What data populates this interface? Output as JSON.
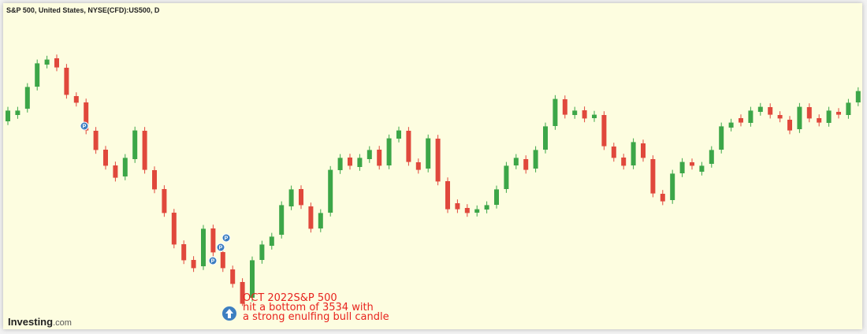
{
  "chart_data": {
    "type": "candlestick",
    "title": "S&P 500, United States, NYSE(CFD):US500, D",
    "annotation": [
      "OCT 2022S&P 500",
      "hit a bottom of 3534 with",
      "a strong enulfing bull candle"
    ],
    "events": [
      "P",
      "P",
      "P",
      "P"
    ],
    "brand": "Investing",
    "brand_suffix": ".com",
    "up_color": "#3ca648",
    "down_color": "#e0483c",
    "ylim": [
      3460,
      4485
    ],
    "open": [
      4120,
      4140,
      4160,
      4230,
      4300,
      4320,
      4290,
      4200,
      4180,
      4090,
      4030,
      3980,
      3945,
      4000,
      4090,
      3965,
      3905,
      3830,
      3730,
      3680,
      3660,
      3780,
      3705,
      3650,
      3610,
      3560,
      3680,
      3725,
      3760,
      3850,
      3905,
      3850,
      3780,
      3830,
      3965,
      4005,
      3975,
      4000,
      4030,
      3980,
      4065,
      4090,
      3990,
      3970,
      4065,
      3930,
      3860,
      3845,
      3830,
      3840,
      3855,
      3905,
      3980,
      4000,
      3970,
      4030,
      4105,
      4190,
      4140,
      4155,
      4130,
      4140,
      4040,
      4005,
      3980,
      4050,
      4000,
      3890,
      3870,
      3955,
      3990,
      3960,
      3985,
      4030,
      4100,
      4130,
      4115,
      4150,
      4165,
      4140,
      4125,
      4095,
      4165,
      4130,
      4115,
      4150,
      4140,
      4180
    ],
    "high": [
      4166,
      4166,
      4241,
      4316,
      4328,
      4332,
      4302,
      4212,
      4192,
      4102,
      4042,
      3992,
      4016,
      4103,
      4102,
      3977,
      3917,
      3842,
      3742,
      3692,
      3791,
      3792,
      3717,
      3662,
      3622,
      3691,
      3741,
      3766,
      3866,
      3916,
      3917,
      3862,
      3841,
      3978,
      4016,
      4017,
      4016,
      4041,
      4042,
      4078,
      4103,
      4102,
      4002,
      4078,
      4077,
      3942,
      3872,
      3857,
      3853,
      3866,
      3916,
      3991,
      4016,
      4012,
      4041,
      4116,
      4203,
      4202,
      4166,
      4167,
      4153,
      4152,
      4052,
      4017,
      4066,
      4062,
      4012,
      3902,
      3966,
      4003,
      4002,
      3991,
      4041,
      4116,
      4128,
      4142,
      4166,
      4178,
      4177,
      4152,
      4137,
      4178,
      4177,
      4142,
      4166,
      4162,
      4191,
      4228
    ],
    "low": [
      4108,
      4128,
      4148,
      4218,
      4288,
      4279,
      4192,
      4167,
      4079,
      4017,
      3967,
      3929,
      3933,
      3988,
      3954,
      3892,
      3817,
      3717,
      3667,
      3642,
      3648,
      3692,
      3642,
      3592,
      3534,
      3548,
      3668,
      3713,
      3748,
      3838,
      3842,
      3767,
      3768,
      3818,
      3953,
      3967,
      3963,
      3988,
      3967,
      3968,
      4053,
      3979,
      3954,
      3958,
      3917,
      3829,
      3829,
      3817,
      3818,
      3828,
      3843,
      3893,
      3968,
      3954,
      3958,
      4018,
      4093,
      4129,
      4128,
      4117,
      4118,
      4029,
      3992,
      3967,
      3968,
      3992,
      3879,
      3854,
      3858,
      3943,
      3967,
      3948,
      3973,
      4018,
      4088,
      4104,
      4103,
      4138,
      4129,
      4117,
      4079,
      4083,
      4117,
      4104,
      4103,
      4129,
      4128,
      4168
    ],
    "close": [
      4154,
      4154,
      4229,
      4304,
      4316,
      4291,
      4204,
      4179,
      4091,
      4029,
      3979,
      3941,
      4004,
      4091,
      3966,
      3904,
      3829,
      3729,
      3679,
      3654,
      3779,
      3704,
      3654,
      3604,
      3541,
      3679,
      3729,
      3754,
      3854,
      3904,
      3854,
      3779,
      3829,
      3966,
      4004,
      3979,
      4004,
      4029,
      3979,
      4066,
      4091,
      3991,
      3966,
      4066,
      3929,
      3841,
      3841,
      3829,
      3841,
      3854,
      3904,
      3979,
      4004,
      3966,
      4029,
      4104,
      4191,
      4141,
      4154,
      4129,
      4141,
      4041,
      4004,
      3979,
      4054,
      4004,
      3891,
      3866,
      3954,
      3991,
      3979,
      3979,
      4029,
      4104,
      4116,
      4116,
      4154,
      4166,
      4141,
      4129,
      4091,
      4166,
      4129,
      4116,
      4154,
      4141,
      4179,
      4216
    ]
  }
}
